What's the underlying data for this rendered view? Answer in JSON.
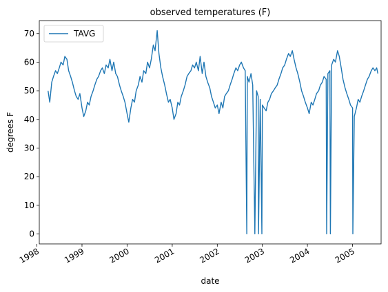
{
  "chart_data": {
    "type": "line",
    "title": "observed temperatures (F)",
    "xlabel": "date",
    "ylabel": "degrees F",
    "xlim": [
      "1998-01-20",
      "2005-08-20"
    ],
    "ylim": [
      -3.5,
      74.5
    ],
    "yticks": [
      0,
      10,
      20,
      30,
      40,
      50,
      60,
      70
    ],
    "xticks": [
      {
        "date": "1998-01-01",
        "label": "1998"
      },
      {
        "date": "1999-01-01",
        "label": "1999"
      },
      {
        "date": "2000-01-01",
        "label": "2000"
      },
      {
        "date": "2001-01-01",
        "label": "2001"
      },
      {
        "date": "2002-01-01",
        "label": "2002"
      },
      {
        "date": "2003-01-01",
        "label": "2003"
      },
      {
        "date": "2004-01-01",
        "label": "2004"
      },
      {
        "date": "2005-01-01",
        "label": "2005"
      }
    ],
    "legend": {
      "position": "top-left"
    },
    "grid": false,
    "series": [
      {
        "name": "TAVG",
        "color": "#1f77b4",
        "x": [
          "1998-04-01",
          "1998-04-15",
          "1998-05-01",
          "1998-05-15",
          "1998-06-01",
          "1998-06-15",
          "1998-07-01",
          "1998-07-15",
          "1998-08-01",
          "1998-08-15",
          "1998-09-01",
          "1998-09-15",
          "1998-10-01",
          "1998-10-15",
          "1998-11-01",
          "1998-11-15",
          "1998-12-01",
          "1998-12-15",
          "1999-01-01",
          "1999-01-15",
          "1999-02-01",
          "1999-02-15",
          "1999-03-01",
          "1999-03-15",
          "1999-04-01",
          "1999-04-15",
          "1999-05-01",
          "1999-05-15",
          "1999-06-01",
          "1999-06-15",
          "1999-07-01",
          "1999-07-15",
          "1999-08-01",
          "1999-08-15",
          "1999-09-01",
          "1999-09-15",
          "1999-10-01",
          "1999-10-15",
          "1999-11-01",
          "1999-11-15",
          "1999-12-01",
          "1999-12-15",
          "2000-01-01",
          "2000-01-15",
          "2000-02-01",
          "2000-02-15",
          "2000-03-01",
          "2000-03-15",
          "2000-04-01",
          "2000-04-15",
          "2000-05-01",
          "2000-05-15",
          "2000-06-01",
          "2000-06-15",
          "2000-07-01",
          "2000-07-15",
          "2000-08-01",
          "2000-08-15",
          "2000-09-01",
          "2000-09-15",
          "2000-10-01",
          "2000-10-15",
          "2000-11-01",
          "2000-11-15",
          "2000-12-01",
          "2000-12-15",
          "2001-01-01",
          "2001-01-15",
          "2001-02-01",
          "2001-02-15",
          "2001-03-01",
          "2001-03-15",
          "2001-04-01",
          "2001-04-15",
          "2001-05-01",
          "2001-05-15",
          "2001-06-01",
          "2001-06-15",
          "2001-07-01",
          "2001-07-15",
          "2001-08-01",
          "2001-08-15",
          "2001-09-01",
          "2001-09-15",
          "2001-10-01",
          "2001-10-15",
          "2001-11-01",
          "2001-11-15",
          "2001-12-01",
          "2001-12-15",
          "2002-01-01",
          "2002-01-15",
          "2002-02-01",
          "2002-02-15",
          "2002-03-01",
          "2002-03-15",
          "2002-04-01",
          "2002-04-15",
          "2002-05-01",
          "2002-05-15",
          "2002-06-01",
          "2002-06-15",
          "2002-07-01",
          "2002-07-15",
          "2002-08-01",
          "2002-08-15",
          "2002-08-28",
          "2002-09-01",
          "2002-09-15",
          "2002-10-01",
          "2002-10-15",
          "2002-11-01",
          "2002-11-15",
          "2002-11-28",
          "2002-12-01",
          "2002-12-15",
          "2002-12-28",
          "2003-01-01",
          "2003-01-15",
          "2003-02-01",
          "2003-02-15",
          "2003-03-01",
          "2003-03-15",
          "2003-04-01",
          "2003-04-15",
          "2003-05-01",
          "2003-05-15",
          "2003-06-01",
          "2003-06-15",
          "2003-07-01",
          "2003-07-15",
          "2003-08-01",
          "2003-08-15",
          "2003-09-01",
          "2003-09-15",
          "2003-10-01",
          "2003-10-15",
          "2003-11-01",
          "2003-11-15",
          "2003-12-01",
          "2003-12-15",
          "2004-01-01",
          "2004-01-15",
          "2004-02-01",
          "2004-02-15",
          "2004-03-01",
          "2004-03-15",
          "2004-04-01",
          "2004-04-15",
          "2004-05-01",
          "2004-05-15",
          "2004-06-01",
          "2004-06-05",
          "2004-06-15",
          "2004-07-01",
          "2004-07-05",
          "2004-07-15",
          "2004-08-01",
          "2004-08-15",
          "2004-09-01",
          "2004-09-15",
          "2004-10-01",
          "2004-10-15",
          "2004-11-01",
          "2004-11-15",
          "2004-12-01",
          "2004-12-15",
          "2005-01-01",
          "2005-01-03",
          "2005-01-15",
          "2005-02-01",
          "2005-02-15",
          "2005-03-01",
          "2005-03-15",
          "2005-04-01",
          "2005-04-15",
          "2005-05-01",
          "2005-05-15",
          "2005-06-01",
          "2005-06-15",
          "2005-07-01",
          "2005-07-15",
          "2005-07-25"
        ],
        "y": [
          50,
          46,
          53,
          55,
          57,
          56,
          58,
          60,
          59,
          62,
          61,
          57,
          55,
          53,
          50,
          48,
          47,
          49,
          44,
          41,
          43,
          46,
          45,
          48,
          50,
          52,
          54,
          55,
          57,
          58,
          56,
          59,
          58,
          61,
          57,
          60,
          56,
          55,
          52,
          50,
          48,
          46,
          42,
          39,
          44,
          47,
          46,
          50,
          52,
          55,
          53,
          57,
          56,
          60,
          58,
          61,
          66,
          64,
          71,
          63,
          58,
          55,
          52,
          49,
          46,
          47,
          44,
          40,
          42,
          46,
          45,
          48,
          50,
          52,
          55,
          56,
          57,
          59,
          58,
          60,
          57,
          62,
          56,
          60,
          55,
          53,
          51,
          48,
          46,
          44,
          45,
          42,
          46,
          44,
          48,
          49,
          50,
          52,
          54,
          56,
          58,
          57,
          59,
          60,
          58,
          57,
          0,
          55,
          53,
          56,
          52,
          0,
          50,
          48,
          0,
          47,
          0,
          45,
          44,
          43,
          46,
          47,
          49,
          50,
          51,
          52,
          54,
          56,
          58,
          59,
          61,
          63,
          62,
          64,
          61,
          58,
          56,
          53,
          50,
          48,
          46,
          44,
          42,
          46,
          45,
          47,
          49,
          50,
          52,
          53,
          55,
          54,
          0,
          56,
          57,
          0,
          59,
          61,
          60,
          64,
          62,
          58,
          54,
          51,
          49,
          47,
          45,
          44,
          0,
          41,
          44,
          47,
          46,
          48,
          50,
          52,
          54,
          55,
          57,
          58,
          57,
          58,
          56
        ]
      }
    ]
  }
}
